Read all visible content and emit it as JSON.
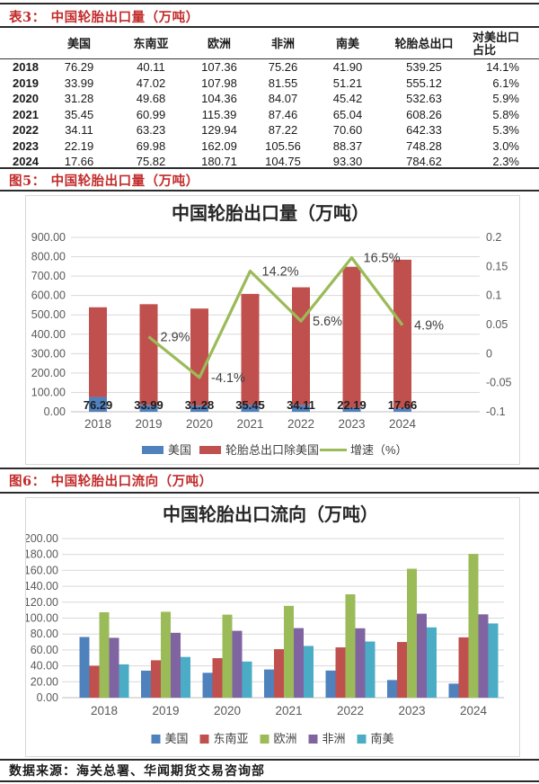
{
  "colors": {
    "accent_red": "#C22A2A",
    "rule_dark": "#2B2B2B",
    "us_blue": "#4F81BD",
    "series_red": "#C0504D",
    "growth_green": "#9BBB59",
    "africa_purple": "#8064A2",
    "southamerica_teal": "#4BACC6",
    "grid_gray": "#D9D9D9",
    "axis_text_gray": "#595959"
  },
  "table3": {
    "tag": "表3：",
    "title": "中国轮胎出口量（万吨）",
    "columns": [
      "",
      "美国",
      "东南亚",
      "欧洲",
      "非洲",
      "南美",
      "轮胎总出口",
      "对美出口占比"
    ],
    "rows": [
      [
        "2018",
        "76.29",
        "40.11",
        "107.36",
        "75.26",
        "41.90",
        "539.25",
        "14.1%"
      ],
      [
        "2019",
        "33.99",
        "47.02",
        "107.98",
        "81.55",
        "51.21",
        "555.12",
        "6.1%"
      ],
      [
        "2020",
        "31.28",
        "49.68",
        "104.36",
        "84.07",
        "45.42",
        "532.63",
        "5.9%"
      ],
      [
        "2021",
        "35.45",
        "60.99",
        "115.39",
        "87.46",
        "65.04",
        "608.26",
        "5.8%"
      ],
      [
        "2022",
        "34.11",
        "63.23",
        "129.94",
        "87.22",
        "70.60",
        "642.33",
        "5.3%"
      ],
      [
        "2023",
        "22.19",
        "69.98",
        "162.09",
        "105.56",
        "88.37",
        "748.28",
        "3.0%"
      ],
      [
        "2024",
        "17.66",
        "75.82",
        "180.71",
        "104.75",
        "93.30",
        "784.62",
        "2.3%"
      ]
    ]
  },
  "fig5": {
    "tag": "图5：",
    "title": "中国轮胎出口量（万吨）"
  },
  "fig6": {
    "tag": "图6：",
    "title": "中国轮胎出口流向（万吨）"
  },
  "footer": {
    "source": "数据来源：海关总署、华闻期货交易咨询部"
  },
  "chart_data": [
    {
      "type": "bar",
      "subtype": "stacked-bar+line",
      "title": "中国轮胎出口量（万吨）",
      "categories": [
        "2018",
        "2019",
        "2020",
        "2021",
        "2022",
        "2023",
        "2024"
      ],
      "series": [
        {
          "name": "美国",
          "type": "bar",
          "color": "#4F81BD",
          "values": [
            76.29,
            33.99,
            31.28,
            35.45,
            34.11,
            22.19,
            17.66
          ]
        },
        {
          "name": "轮胎总出口除美国",
          "type": "bar",
          "color": "#C0504D",
          "values": [
            462.96,
            521.13,
            501.35,
            572.81,
            608.22,
            726.09,
            766.96
          ]
        },
        {
          "name": "增速（%）",
          "type": "line",
          "axis": "right",
          "color": "#9BBB59",
          "values": [
            null,
            0.029,
            -0.041,
            0.142,
            0.056,
            0.165,
            0.049
          ],
          "point_labels": [
            "",
            "2.9%",
            "-4.1%",
            "14.2%",
            "5.6%",
            "16.5%",
            "4.9%"
          ]
        }
      ],
      "bar_value_labels": [
        "76.29",
        "33.99",
        "31.28",
        "35.45",
        "34.11",
        "22.19",
        "17.66"
      ],
      "left_axis": {
        "min": 0,
        "max": 900,
        "ticks": [
          "0.00",
          "100.00",
          "200.00",
          "300.00",
          "400.00",
          "500.00",
          "600.00",
          "700.00",
          "800.00",
          "900.00"
        ]
      },
      "right_axis": {
        "min": -0.1,
        "max": 0.2,
        "ticks": [
          "-0.1",
          "-0.05",
          "0",
          "0.05",
          "0.1",
          "0.15",
          "0.2"
        ]
      },
      "legend": [
        "美国",
        "轮胎总出口除美国",
        "增速（%）"
      ],
      "legend_position": "bottom",
      "grid": true
    },
    {
      "type": "bar",
      "subtype": "grouped-bar",
      "title": "中国轮胎出口流向（万吨）",
      "categories": [
        "2018",
        "2019",
        "2020",
        "2021",
        "2022",
        "2023",
        "2024"
      ],
      "series": [
        {
          "name": "美国",
          "color": "#4F81BD",
          "values": [
            76.29,
            33.99,
            31.28,
            35.45,
            34.11,
            22.19,
            17.66
          ]
        },
        {
          "name": "东南亚",
          "color": "#C0504D",
          "values": [
            40.11,
            47.02,
            49.68,
            60.99,
            63.23,
            69.98,
            75.82
          ]
        },
        {
          "name": "欧洲",
          "color": "#9BBB59",
          "values": [
            107.36,
            107.98,
            104.36,
            115.39,
            129.94,
            162.09,
            180.71
          ]
        },
        {
          "name": "非洲",
          "color": "#8064A2",
          "values": [
            75.26,
            81.55,
            84.07,
            87.46,
            87.22,
            105.56,
            104.75
          ]
        },
        {
          "name": "南美",
          "color": "#4BACC6",
          "values": [
            41.9,
            51.21,
            45.42,
            65.04,
            70.6,
            88.37,
            93.3
          ]
        }
      ],
      "left_axis": {
        "min": 0,
        "max": 200,
        "ticks": [
          "0.00",
          "20.00",
          "40.00",
          "60.00",
          "80.00",
          "100.00",
          "120.00",
          "140.00",
          "160.00",
          "180.00",
          "200.00"
        ]
      },
      "legend": [
        "美国",
        "东南亚",
        "欧洲",
        "非洲",
        "南美"
      ],
      "legend_position": "bottom",
      "grid": true
    }
  ]
}
